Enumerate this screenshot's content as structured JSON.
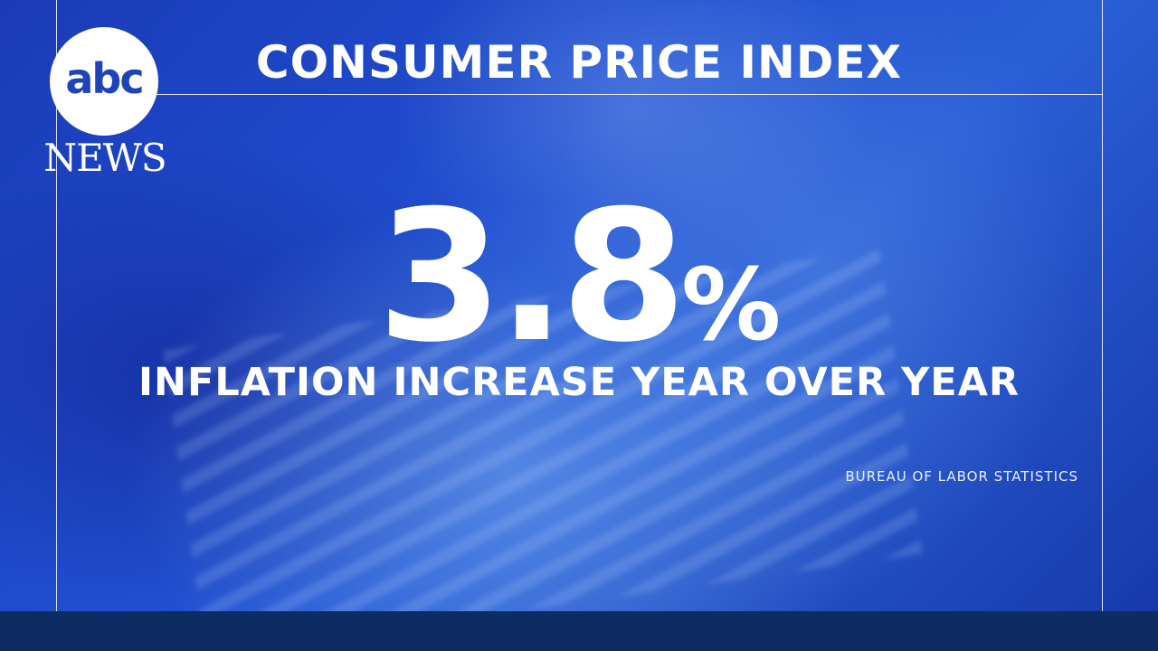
{
  "logo": {
    "mark": "abc",
    "word": "NEWS"
  },
  "title": "CONSUMER PRICE INDEX",
  "stat": {
    "value": "3.8",
    "unit": "%"
  },
  "subtitle": "INFLATION INCREASE YEAR OVER YEAR",
  "source": "BUREAU OF LABOR STATISTICS"
}
